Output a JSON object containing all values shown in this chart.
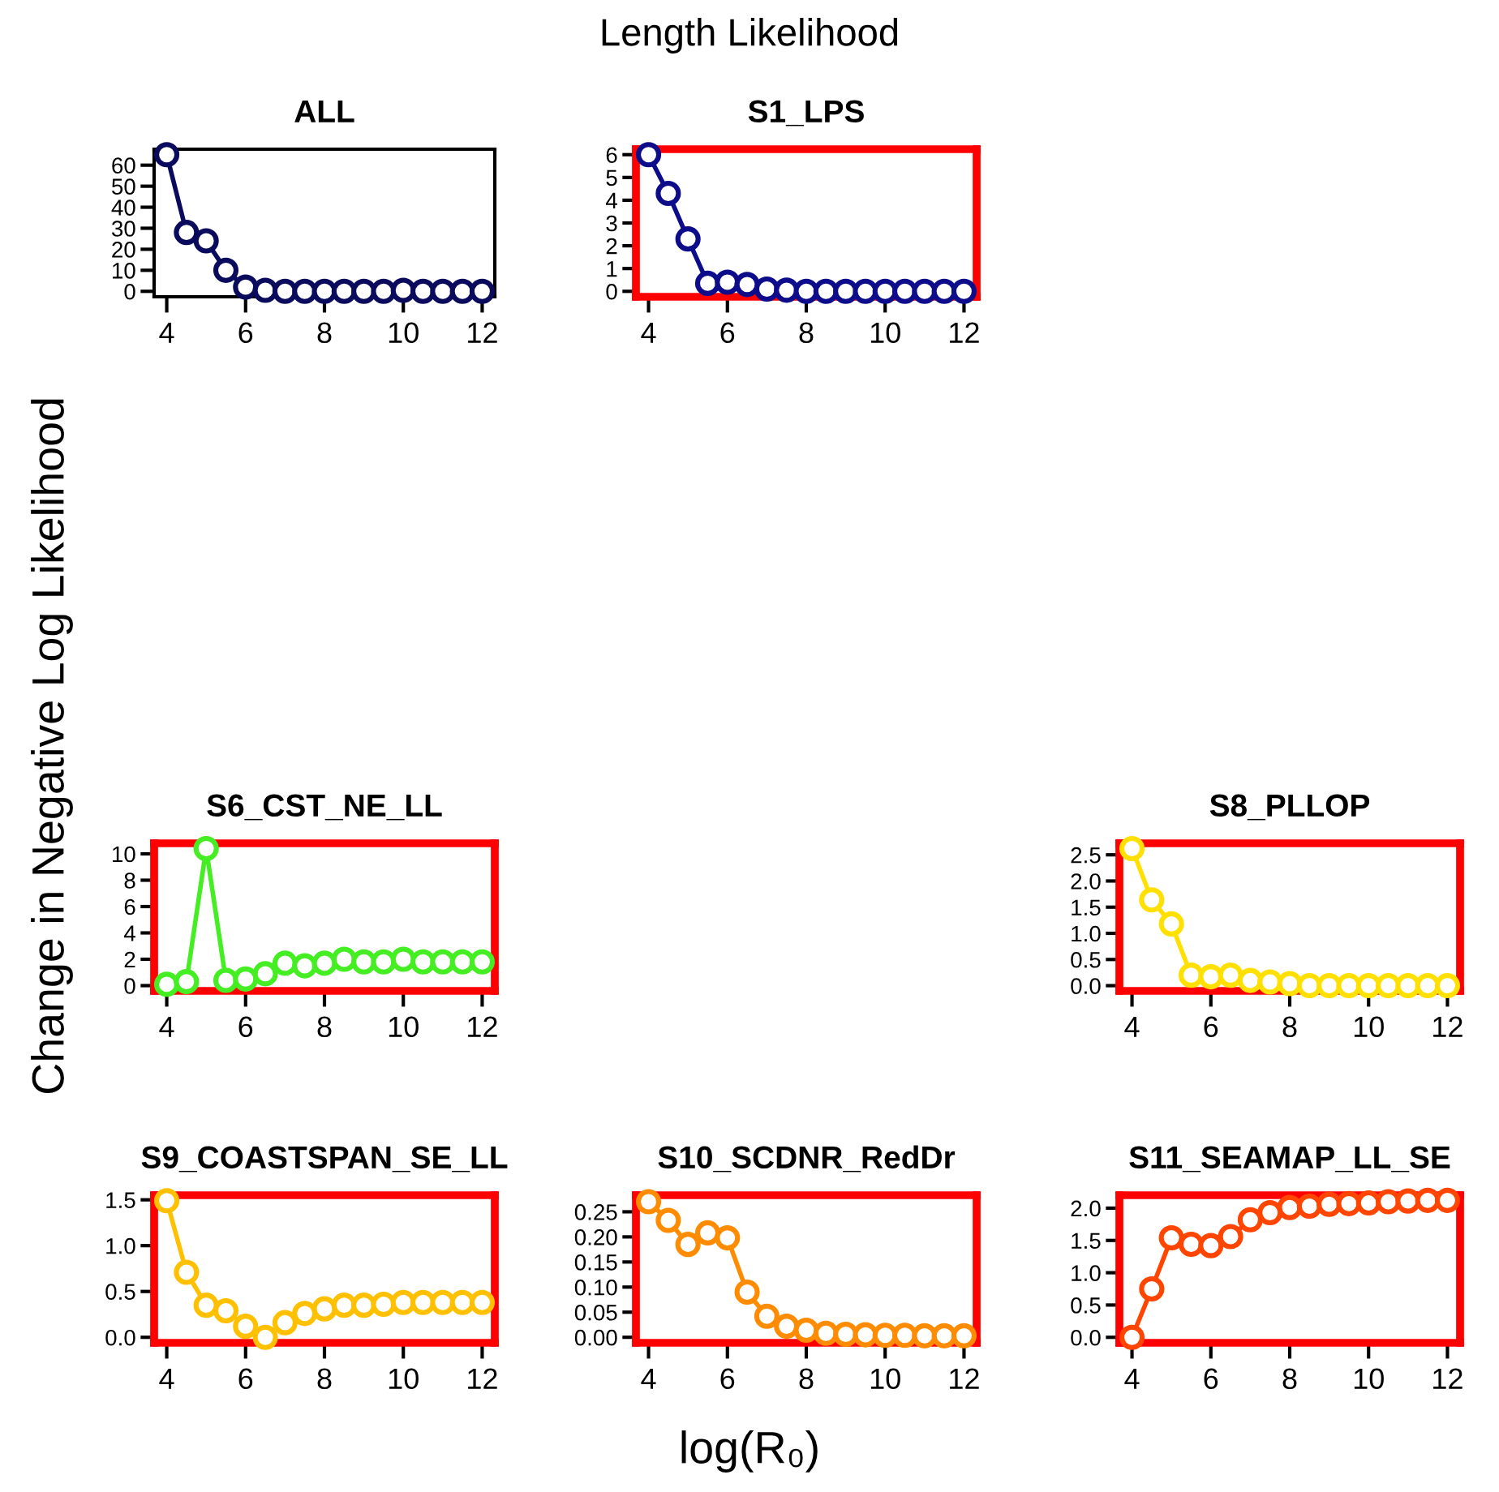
{
  "chart_data": [
    {
      "type": "other",
      "title": "Length Likelihood",
      "xlabel": "log(R₀)",
      "ylabel": "Change in Negative Log Likelihood"
    },
    {
      "type": "line",
      "title": "ALL",
      "x": [
        4,
        4.5,
        5,
        5.5,
        6,
        6.5,
        7,
        7.5,
        8,
        8.5,
        9,
        9.5,
        10,
        10.5,
        11,
        11.5,
        12
      ],
      "marker": "circle",
      "line_style": "solid",
      "xlim": [
        3.68,
        12.32
      ],
      "xticks": [
        4,
        6,
        8,
        10,
        12
      ],
      "ylim": [
        -2.6,
        67.6
      ],
      "yticks": [
        0,
        10,
        20,
        30,
        40,
        50,
        60
      ],
      "series": [
        {
          "color": "#0b0b5e",
          "values": [
            65,
            28,
            24,
            10,
            2,
            0.5,
            0,
            0,
            0,
            0,
            0,
            0,
            0.5,
            0,
            0,
            0,
            0
          ]
        }
      ]
    },
    {
      "type": "line",
      "title": "S1_LPS",
      "x": [
        4,
        4.5,
        5,
        5.5,
        6,
        6.5,
        7,
        7.5,
        8,
        8.5,
        9,
        9.5,
        10,
        10.5,
        11,
        11.5,
        12
      ],
      "marker": "circle",
      "line_style": "solid",
      "xlim": [
        3.68,
        12.32
      ],
      "xticks": [
        4,
        6,
        8,
        10,
        12
      ],
      "ylim": [
        -0.24,
        6.24
      ],
      "yticks": [
        0,
        1,
        2,
        3,
        4,
        5,
        6
      ],
      "series": [
        {
          "color": "#0d0d8c",
          "values": [
            6.0,
            4.3,
            2.3,
            0.35,
            0.4,
            0.3,
            0.1,
            0.05,
            0,
            0,
            0,
            0,
            0,
            0,
            0,
            0,
            0
          ]
        }
      ]
    },
    {
      "type": "line",
      "title": "S6_CST_NE_LL",
      "x": [
        4,
        4.5,
        5,
        5.5,
        6,
        6.5,
        7,
        7.5,
        8,
        8.5,
        9,
        9.5,
        10,
        10.5,
        11,
        11.5,
        12
      ],
      "marker": "circle",
      "line_style": "solid",
      "xlim": [
        3.68,
        12.32
      ],
      "xticks": [
        4,
        6,
        8,
        10,
        12
      ],
      "ylim": [
        -0.4,
        10.8
      ],
      "yticks": [
        0,
        2,
        4,
        6,
        8,
        10
      ],
      "series": [
        {
          "color": "#44ee22",
          "values": [
            0.1,
            0.3,
            10.4,
            0.4,
            0.5,
            0.9,
            1.7,
            1.5,
            1.7,
            2.0,
            1.8,
            1.8,
            2.0,
            1.8,
            1.8,
            1.8,
            1.8
          ]
        }
      ]
    },
    {
      "type": "line",
      "title": "S8_PLLOP",
      "x": [
        4,
        4.5,
        5,
        5.5,
        6,
        6.5,
        7,
        7.5,
        8,
        8.5,
        9,
        9.5,
        10,
        10.5,
        11,
        11.5,
        12
      ],
      "marker": "circle",
      "line_style": "solid",
      "xlim": [
        3.68,
        12.32
      ],
      "xticks": [
        4,
        6,
        8,
        10,
        12
      ],
      "ylim": [
        -0.1,
        2.72
      ],
      "yticks": [
        {
          "value": 0,
          "label": "0.0"
        },
        {
          "value": 0.5,
          "label": "0.5"
        },
        {
          "value": 1,
          "label": "1.0"
        },
        {
          "value": 1.5,
          "label": "1.5"
        },
        {
          "value": 2,
          "label": "2.0"
        },
        {
          "value": 2.5,
          "label": "2.5"
        }
      ],
      "series": [
        {
          "color": "#ffe000",
          "values": [
            2.62,
            1.64,
            1.18,
            0.2,
            0.17,
            0.2,
            0.1,
            0.07,
            0.04,
            0,
            0,
            0,
            0,
            0,
            0,
            0,
            0
          ]
        }
      ]
    },
    {
      "type": "line",
      "title": "S9_COASTSPAN_SE_LL",
      "x": [
        4,
        4.5,
        5,
        5.5,
        6,
        6.5,
        7,
        7.5,
        8,
        8.5,
        9,
        9.5,
        10,
        10.5,
        11,
        11.5,
        12
      ],
      "marker": "circle",
      "line_style": "solid",
      "xlim": [
        3.68,
        12.32
      ],
      "xticks": [
        4,
        6,
        8,
        10,
        12
      ],
      "ylim": [
        -0.06,
        1.55
      ],
      "yticks": [
        {
          "value": 0,
          "label": "0.0"
        },
        {
          "value": 0.5,
          "label": "0.5"
        },
        {
          "value": 1,
          "label": "1.0"
        },
        {
          "value": 1.5,
          "label": "1.5"
        }
      ],
      "series": [
        {
          "color": "#ffc000",
          "values": [
            1.49,
            0.71,
            0.35,
            0.29,
            0.12,
            0.0,
            0.16,
            0.26,
            0.31,
            0.35,
            0.35,
            0.36,
            0.38,
            0.38,
            0.38,
            0.38,
            0.38
          ]
        }
      ]
    },
    {
      "type": "line",
      "title": "S10_SCDNR_RedDr",
      "x": [
        4,
        4.5,
        5,
        5.5,
        6,
        6.5,
        7,
        7.5,
        8,
        8.5,
        9,
        9.5,
        10,
        10.5,
        11,
        11.5,
        12
      ],
      "marker": "circle",
      "line_style": "solid",
      "xlim": [
        3.68,
        12.32
      ],
      "xticks": [
        4,
        6,
        8,
        10,
        12
      ],
      "ylim": [
        -0.011,
        0.283
      ],
      "yticks": [
        {
          "value": 0,
          "label": "0.00"
        },
        {
          "value": 0.05,
          "label": "0.05"
        },
        {
          "value": 0.1,
          "label": "0.10"
        },
        {
          "value": 0.15,
          "label": "0.15"
        },
        {
          "value": 0.2,
          "label": "0.20"
        },
        {
          "value": 0.25,
          "label": "0.25"
        }
      ],
      "series": [
        {
          "color": "#ff8c00",
          "values": [
            0.27,
            0.233,
            0.185,
            0.208,
            0.198,
            0.09,
            0.042,
            0.022,
            0.014,
            0.008,
            0.006,
            0.005,
            0.004,
            0.004,
            0.003,
            0.003,
            0.003
          ]
        }
      ]
    },
    {
      "type": "line",
      "title": "S11_SEAMAP_LL_SE",
      "x": [
        4,
        4.5,
        5,
        5.5,
        6,
        6.5,
        7,
        7.5,
        8,
        8.5,
        9,
        9.5,
        10,
        10.5,
        11,
        11.5,
        12
      ],
      "marker": "circle",
      "line_style": "solid",
      "xlim": [
        3.68,
        12.32
      ],
      "xticks": [
        4,
        6,
        8,
        10,
        12
      ],
      "ylim": [
        -0.085,
        2.2
      ],
      "yticks": [
        {
          "value": 0,
          "label": "0.0"
        },
        {
          "value": 0.5,
          "label": "0.5"
        },
        {
          "value": 1,
          "label": "1.0"
        },
        {
          "value": 1.5,
          "label": "1.5"
        },
        {
          "value": 2,
          "label": "2.0"
        }
      ],
      "series": [
        {
          "color": "#ff4500",
          "values": [
            0,
            0.75,
            1.54,
            1.44,
            1.42,
            1.56,
            1.82,
            1.93,
            2.01,
            2.03,
            2.06,
            2.07,
            2.08,
            2.1,
            2.11,
            2.12,
            2.12
          ]
        }
      ]
    }
  ]
}
